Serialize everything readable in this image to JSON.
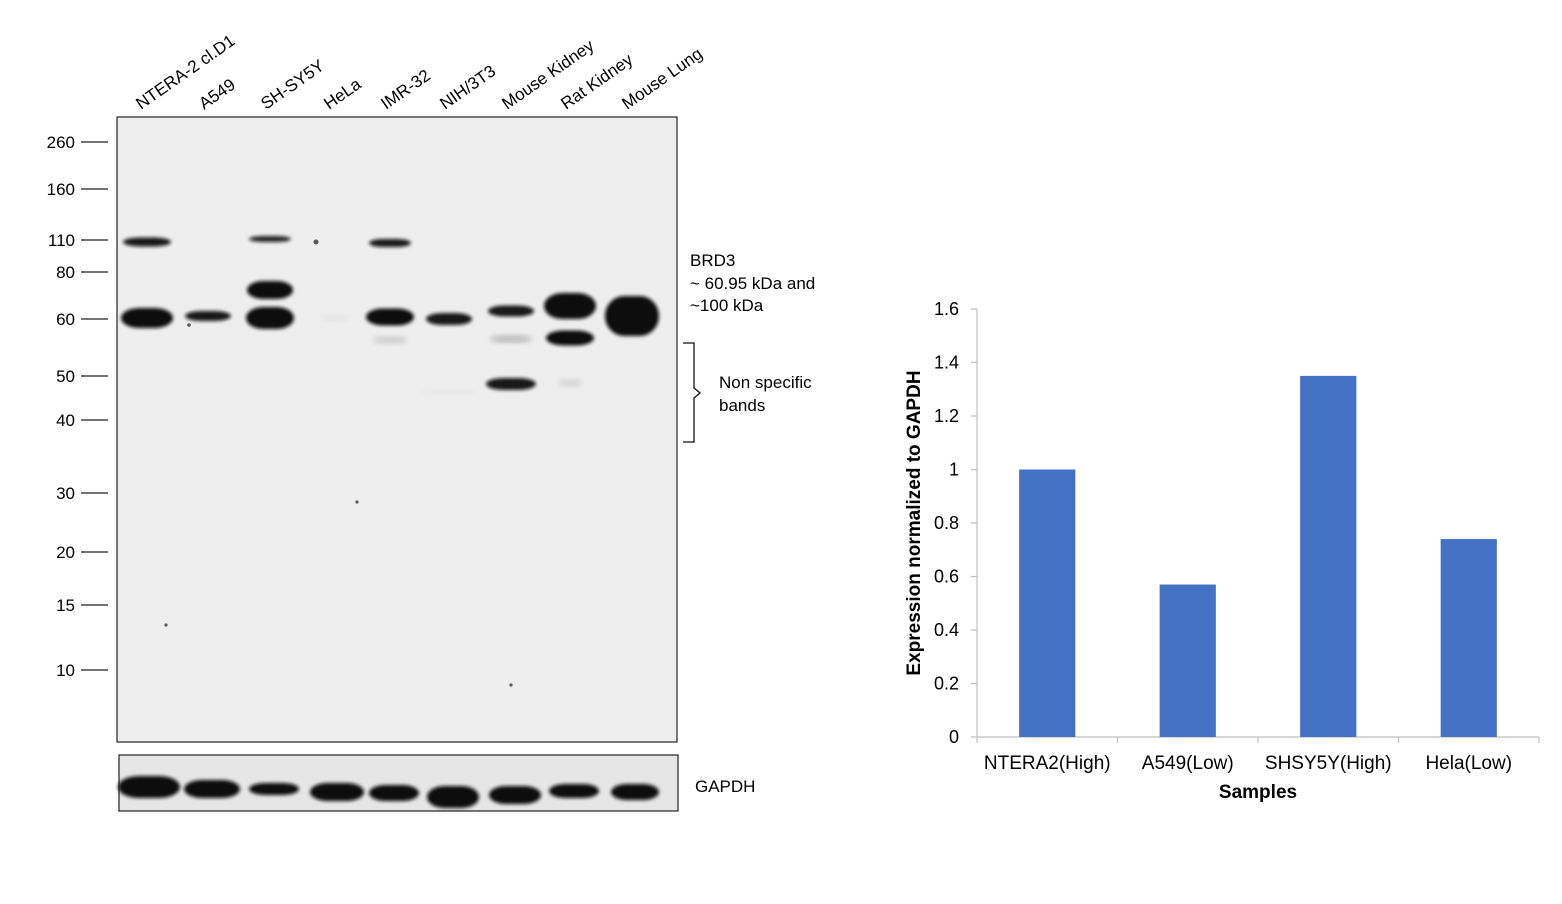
{
  "blot": {
    "lanes": [
      "NTERA-2 cl.D1",
      "A549",
      "SH-SY5Y",
      "HeLa",
      "IMR-32",
      "NIH/3T3",
      "Mouse Kidney",
      "Rat Kidney",
      "Mouse Lung"
    ],
    "markers": [
      "260",
      "160",
      "110",
      "80",
      "60",
      "50",
      "40",
      "30",
      "20",
      "15",
      "10"
    ],
    "target_label": [
      "BRD3",
      "~ 60.95 kDa and",
      "~100 kDa"
    ],
    "nonspecific_label": [
      "Non specific",
      "bands"
    ],
    "loading_control": "GAPDH"
  },
  "chart_data": {
    "type": "bar",
    "categories": [
      "NTERA2(High)",
      "A549(Low)",
      "SHSY5Y(High)",
      "Hela(Low)"
    ],
    "values": [
      1.0,
      0.57,
      1.35,
      0.74
    ],
    "title": "",
    "xlabel": "Samples",
    "ylabel": "Expression normalized to GAPDH",
    "ylim": [
      0,
      1.6
    ],
    "yticks": [
      "0",
      "0.2",
      "0.4",
      "0.6",
      "0.8",
      "1",
      "1.2",
      "1.4",
      "1.6"
    ],
    "bar_color": "#4472c4",
    "grid": false,
    "legend": "none"
  }
}
